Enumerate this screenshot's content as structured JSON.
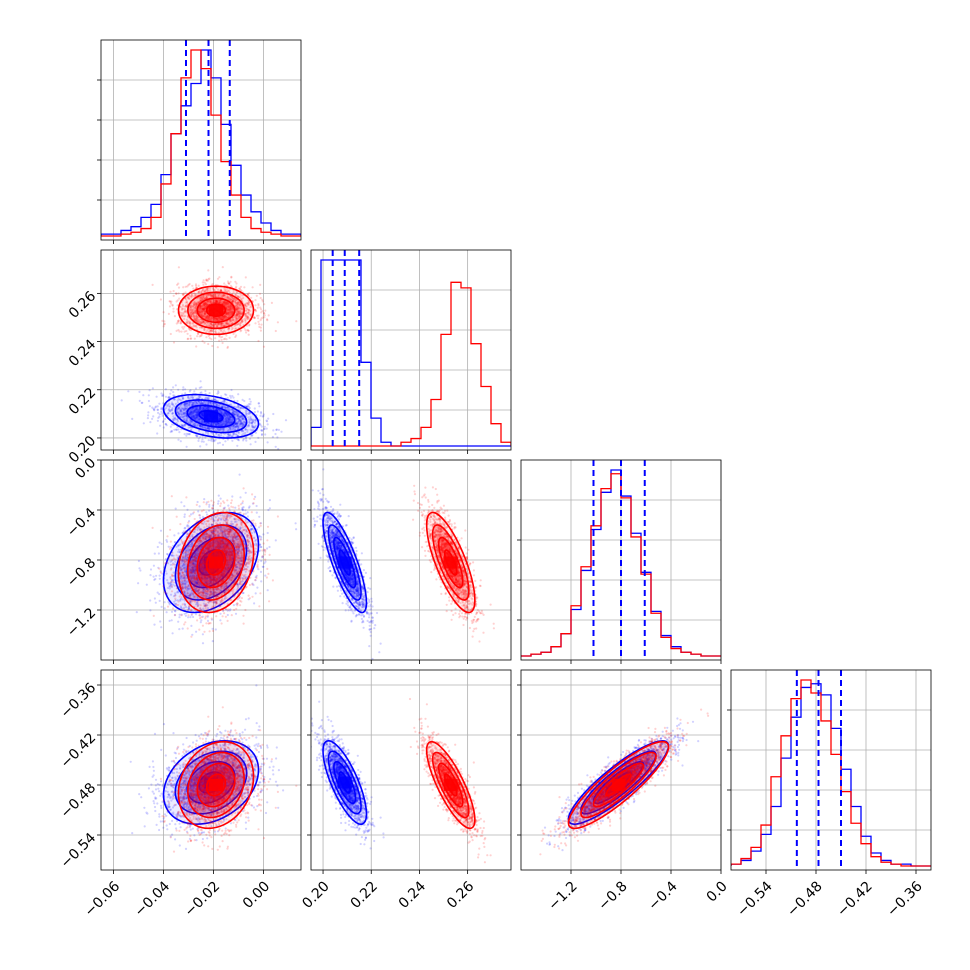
{
  "chart_data": {
    "type": "corner",
    "grid": true,
    "series_colors": {
      "blue": "#0000ff",
      "red": "#ff0000"
    },
    "parameters": [
      {
        "id": "p1",
        "range": [
          -0.065,
          0.015
        ],
        "ticks": [
          {
            "v": -0.06,
            "label": "−0.06"
          },
          {
            "v": -0.04,
            "label": "−0.04"
          },
          {
            "v": -0.02,
            "label": "−0.02"
          },
          {
            "v": 0.0,
            "label": "0.00"
          }
        ],
        "blue": {
          "mean": -0.021,
          "sd": 0.0095,
          "hist": [
            1,
            1,
            3,
            5,
            10,
            17,
            33,
            55,
            70,
            82,
            100,
            85,
            60,
            38,
            22,
            13,
            7,
            3,
            1,
            1
          ],
          "quantiles": [
            -0.031,
            -0.022,
            -0.0135
          ]
        },
        "red": {
          "mean": -0.019,
          "sd": 0.0075,
          "hist": [
            0,
            0,
            1,
            2,
            4,
            10,
            28,
            55,
            85,
            100,
            90,
            65,
            40,
            22,
            10,
            4,
            2,
            1,
            0,
            0
          ]
        }
      },
      {
        "id": "p2",
        "range": [
          0.195,
          0.278
        ],
        "ticks": [
          {
            "v": 0.2,
            "label": "0.20"
          },
          {
            "v": 0.22,
            "label": "0.22"
          },
          {
            "v": 0.24,
            "label": "0.24"
          },
          {
            "v": 0.26,
            "label": "0.26"
          }
        ],
        "blue": {
          "mean": 0.209,
          "sd": 0.0045,
          "hist": [
            10,
            100,
            100,
            100,
            100,
            45,
            15,
            2,
            0,
            0,
            0,
            0,
            0,
            0,
            0,
            0,
            0,
            0,
            0,
            0
          ],
          "quantiles": [
            0.204,
            0.209,
            0.215
          ]
        },
        "red": {
          "mean": 0.253,
          "sd": 0.005,
          "hist": [
            0,
            0,
            0,
            0,
            0,
            0,
            0,
            0,
            0,
            2,
            4,
            10,
            25,
            60,
            88,
            85,
            55,
            32,
            12,
            2
          ]
        }
      },
      {
        "id": "p3",
        "range": [
          -1.6,
          0.0
        ],
        "ticks": [
          {
            "v": -1.2,
            "label": "−1.2"
          },
          {
            "v": -0.8,
            "label": "−0.8"
          },
          {
            "v": -0.4,
            "label": "−0.4"
          },
          {
            "v": 0.0,
            "label": "0.0"
          }
        ],
        "blue": {
          "mean": -0.82,
          "sd": 0.2,
          "hist": [
            0,
            1,
            2,
            5,
            12,
            25,
            46,
            68,
            88,
            100,
            86,
            66,
            45,
            24,
            11,
            5,
            2,
            1,
            0,
            0
          ],
          "quantiles": [
            -1.02,
            -0.8,
            -0.61
          ]
        },
        "red": {
          "mean": -0.82,
          "sd": 0.2,
          "hist": [
            0,
            1,
            2,
            5,
            12,
            27,
            48,
            70,
            90,
            98,
            85,
            64,
            44,
            23,
            10,
            4,
            2,
            1,
            0,
            0
          ]
        }
      },
      {
        "id": "p4",
        "range": [
          -0.582,
          -0.342
        ],
        "ticks": [
          {
            "v": -0.54,
            "label": "−0.54"
          },
          {
            "v": -0.48,
            "label": "−0.48"
          },
          {
            "v": -0.42,
            "label": "−0.42"
          },
          {
            "v": -0.36,
            "label": "−0.36"
          }
        ],
        "blue": {
          "mean": -0.477,
          "sd": 0.025,
          "hist": [
            1,
            3,
            8,
            17,
            32,
            58,
            80,
            96,
            98,
            92,
            74,
            52,
            32,
            16,
            7,
            3,
            1,
            1,
            0,
            0
          ],
          "quantiles": [
            -0.503,
            -0.477,
            -0.45
          ]
        },
        "red": {
          "mean": -0.48,
          "sd": 0.026,
          "hist": [
            1,
            4,
            10,
            22,
            48,
            70,
            90,
            100,
            93,
            78,
            60,
            40,
            23,
            12,
            5,
            2,
            1,
            0,
            0,
            0
          ]
        }
      }
    ],
    "correlations": {
      "blue": {
        "1,0": -0.35,
        "2,0": 0.35,
        "2,1": -0.8,
        "3,0": 0.3,
        "3,1": -0.75,
        "3,2": 0.88
      },
      "red": {
        "1,0": 0.0,
        "2,0": 0.2,
        "2,1": -0.75,
        "3,0": 0.2,
        "3,1": -0.8,
        "3,2": 0.88
      }
    },
    "levels_sigma": [
      0.5,
      1.0,
      1.5,
      2.0
    ]
  }
}
